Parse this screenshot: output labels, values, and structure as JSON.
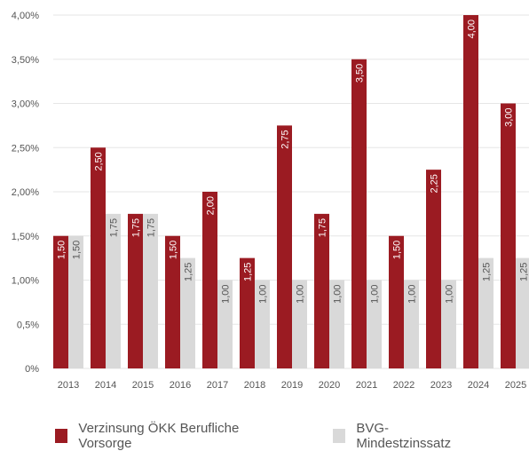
{
  "chart_data": {
    "type": "bar",
    "categories": [
      "2013",
      "2014",
      "2015",
      "2016",
      "2017",
      "2018",
      "2019",
      "2020",
      "2021",
      "2022",
      "2023",
      "2024",
      "2025"
    ],
    "series": [
      {
        "name": "Verzinsung ÖKK Berufliche Vorsorge",
        "values": [
          1.5,
          2.5,
          1.75,
          1.5,
          2.0,
          1.25,
          2.75,
          1.75,
          3.5,
          1.5,
          2.25,
          4.0,
          3.0
        ],
        "labels": [
          "1,50",
          "2,50",
          "1,75",
          "1,50",
          "2,00",
          "1,25",
          "2,75",
          "1,75",
          "3,50",
          "1,50",
          "2,25",
          "4,00",
          "3,00"
        ],
        "color": "#9B1B22",
        "label_color": "#ffffff"
      },
      {
        "name": "BVG-Mindestzinssatz",
        "values": [
          1.5,
          1.75,
          1.75,
          1.25,
          1.0,
          1.0,
          1.0,
          1.0,
          1.0,
          1.0,
          1.0,
          1.25,
          1.25
        ],
        "labels": [
          "1,50",
          "1,75",
          "1,75",
          "1,25",
          "1,00",
          "1,00",
          "1,00",
          "1,00",
          "1,00",
          "1,00",
          "1,00",
          "1,25",
          "1,25"
        ],
        "color": "#D9D9D9",
        "label_color": "#555555"
      }
    ],
    "yticks": [
      {
        "value": 0,
        "label": "0%"
      },
      {
        "value": 0.5,
        "label": "0,5%"
      },
      {
        "value": 1.0,
        "label": "1,00%"
      },
      {
        "value": 1.5,
        "label": "1,50%"
      },
      {
        "value": 2.0,
        "label": "2,00%"
      },
      {
        "value": 2.5,
        "label": "2,50%"
      },
      {
        "value": 3.0,
        "label": "3,00%"
      },
      {
        "value": 3.5,
        "label": "3,50%"
      },
      {
        "value": 4.0,
        "label": "4,00%"
      }
    ],
    "ylim": [
      0,
      4.0
    ],
    "grid": true,
    "legend": "bottom",
    "title": "",
    "xlabel": "",
    "ylabel": ""
  }
}
